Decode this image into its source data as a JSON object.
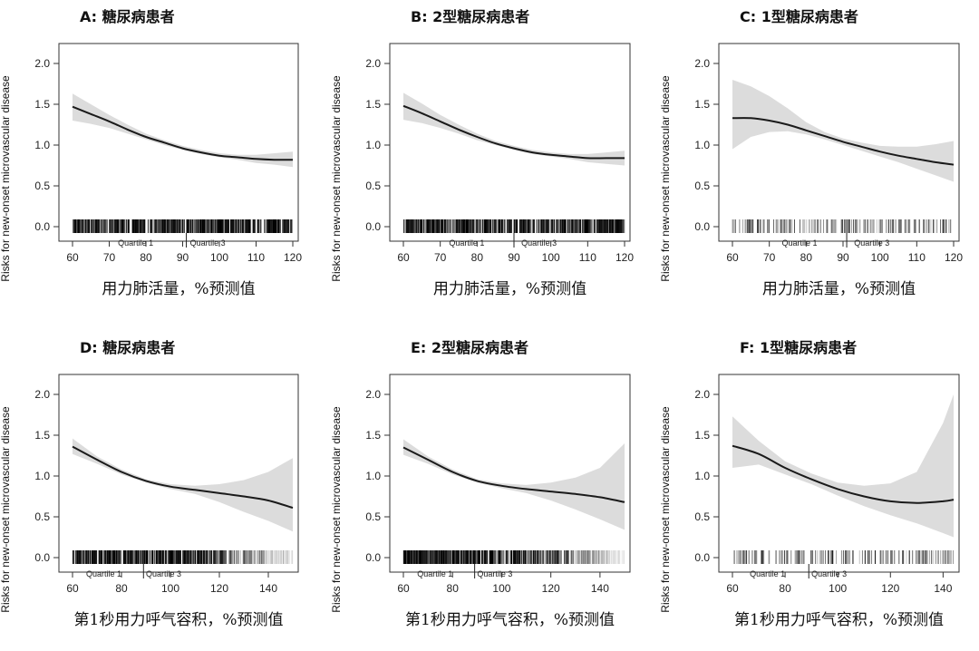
{
  "chart_data": [
    {
      "type": "line",
      "title": "A: 糖尿病患者",
      "xlabel": "用力肺活量，%预测值",
      "ylabel": "Risks for new-onset microvascular disease",
      "xlim": [
        60,
        120
      ],
      "ylim": [
        0,
        2
      ],
      "xticks": [
        60,
        70,
        80,
        90,
        100,
        110,
        120
      ],
      "yticks": [
        0.0,
        0.5,
        1.0,
        1.5,
        2.0
      ],
      "ytick_labels": [
        "0.0",
        "0.5",
        "1.0",
        "1.5",
        "2.0"
      ],
      "series": [
        {
          "x": [
            60,
            65,
            70,
            75,
            80,
            85,
            90,
            95,
            100,
            105,
            110,
            115,
            120
          ],
          "y": [
            1.47,
            1.38,
            1.29,
            1.19,
            1.1,
            1.03,
            0.96,
            0.91,
            0.87,
            0.85,
            0.83,
            0.82,
            0.82
          ]
        }
      ],
      "ci_lower": [
        1.3,
        1.26,
        1.21,
        1.14,
        1.07,
        1.0,
        0.94,
        0.89,
        0.85,
        0.82,
        0.78,
        0.76,
        0.73
      ],
      "ci_upper": [
        1.63,
        1.5,
        1.37,
        1.25,
        1.14,
        1.06,
        0.99,
        0.94,
        0.9,
        0.88,
        0.88,
        0.9,
        0.92
      ],
      "rug": {
        "min": 60,
        "max": 120,
        "density": "dense"
      },
      "quartiles": [
        {
          "label": "Quartile 1",
          "x": 82
        },
        {
          "label": "Quartile 3",
          "x": 92
        }
      ],
      "quartile_median_x": 91
    },
    {
      "type": "line",
      "title": "B: 2型糖尿病患者",
      "xlabel": "用力肺活量，%预测值",
      "ylabel": "Risks for new-onset microvascular disease",
      "xlim": [
        60,
        120
      ],
      "ylim": [
        0,
        2
      ],
      "xticks": [
        60,
        70,
        80,
        90,
        100,
        110,
        120
      ],
      "yticks": [
        0.0,
        0.5,
        1.0,
        1.5,
        2.0
      ],
      "ytick_labels": [
        "0.0",
        "0.5",
        "1.0",
        "1.5",
        "2.0"
      ],
      "series": [
        {
          "x": [
            60,
            65,
            70,
            75,
            80,
            85,
            90,
            95,
            100,
            105,
            110,
            115,
            120
          ],
          "y": [
            1.48,
            1.39,
            1.29,
            1.19,
            1.1,
            1.02,
            0.96,
            0.91,
            0.88,
            0.86,
            0.84,
            0.84,
            0.84
          ]
        }
      ],
      "ci_lower": [
        1.31,
        1.27,
        1.21,
        1.14,
        1.06,
        1.0,
        0.94,
        0.89,
        0.86,
        0.83,
        0.79,
        0.77,
        0.75
      ],
      "ci_upper": [
        1.64,
        1.51,
        1.37,
        1.25,
        1.14,
        1.05,
        0.99,
        0.94,
        0.91,
        0.89,
        0.89,
        0.91,
        0.93
      ],
      "rug": {
        "min": 60,
        "max": 120,
        "density": "dense"
      },
      "quartiles": [
        {
          "label": "Quartile 1",
          "x": 82
        },
        {
          "label": "Quartile 3",
          "x": 92
        }
      ],
      "quartile_median_x": 90
    },
    {
      "type": "line",
      "title": "C: 1型糖尿病患者",
      "xlabel": "用力肺活量，%预测值",
      "ylabel": "Risks for new-onset microvascular disease",
      "xlim": [
        60,
        120
      ],
      "ylim": [
        0,
        2
      ],
      "xticks": [
        60,
        70,
        80,
        90,
        100,
        110,
        120
      ],
      "yticks": [
        0.0,
        0.5,
        1.0,
        1.5,
        2.0
      ],
      "ytick_labels": [
        "0.0",
        "0.5",
        "1.0",
        "1.5",
        "2.0"
      ],
      "series": [
        {
          "x": [
            60,
            65,
            70,
            75,
            80,
            85,
            90,
            95,
            100,
            105,
            110,
            115,
            120
          ],
          "y": [
            1.33,
            1.33,
            1.3,
            1.25,
            1.18,
            1.11,
            1.04,
            0.98,
            0.92,
            0.87,
            0.83,
            0.79,
            0.76
          ]
        }
      ],
      "ci_lower": [
        0.95,
        1.1,
        1.16,
        1.17,
        1.13,
        1.07,
        1.0,
        0.93,
        0.86,
        0.79,
        0.71,
        0.63,
        0.55
      ],
      "ci_upper": [
        1.8,
        1.72,
        1.6,
        1.45,
        1.28,
        1.16,
        1.08,
        1.03,
        0.99,
        0.98,
        0.98,
        1.01,
        1.05
      ],
      "rug": {
        "min": 60,
        "max": 120,
        "density": "sparse"
      },
      "quartiles": [
        {
          "label": "Quartile 1",
          "x": 83
        },
        {
          "label": "Quartile 3",
          "x": 93
        }
      ],
      "quartile_median_x": 91
    },
    {
      "type": "line",
      "title": "D: 糖尿病患者",
      "xlabel": "第1秒用力呼气容积，%预测值",
      "ylabel": "Risks for new-onset microvascular disease",
      "xlim": [
        60,
        150
      ],
      "ylim": [
        0,
        2
      ],
      "xticks": [
        60,
        80,
        100,
        120,
        140
      ],
      "yticks": [
        0.0,
        0.5,
        1.0,
        1.5,
        2.0
      ],
      "ytick_labels": [
        "0.0",
        "0.5",
        "1.0",
        "1.5",
        "2.0"
      ],
      "series": [
        {
          "x": [
            60,
            70,
            80,
            90,
            100,
            110,
            120,
            130,
            140,
            150
          ],
          "y": [
            1.36,
            1.2,
            1.05,
            0.94,
            0.87,
            0.83,
            0.79,
            0.75,
            0.7,
            0.61
          ]
        }
      ],
      "ci_lower": [
        1.27,
        1.15,
        1.02,
        0.92,
        0.84,
        0.78,
        0.68,
        0.56,
        0.45,
        0.32
      ],
      "ci_upper": [
        1.46,
        1.24,
        1.08,
        0.96,
        0.9,
        0.88,
        0.9,
        0.95,
        1.05,
        1.22
      ],
      "rug": {
        "min": 60,
        "max": 150,
        "density": "dense-fade"
      },
      "quartiles": [
        {
          "label": "Quartile 1",
          "x": 80
        },
        {
          "label": "Quartile 3",
          "x": 90
        }
      ],
      "quartile_median_x": 89
    },
    {
      "type": "line",
      "title": "E: 2型糖尿病患者",
      "xlabel": "第1秒用力呼气容积，%预测值",
      "ylabel": "Risks for new-onset microvascular disease",
      "xlim": [
        60,
        150
      ],
      "ylim": [
        0,
        2
      ],
      "xticks": [
        60,
        80,
        100,
        120,
        140
      ],
      "yticks": [
        0.0,
        0.5,
        1.0,
        1.5,
        2.0
      ],
      "ytick_labels": [
        "0.0",
        "0.5",
        "1.0",
        "1.5",
        "2.0"
      ],
      "series": [
        {
          "x": [
            60,
            70,
            80,
            90,
            100,
            110,
            120,
            130,
            140,
            150
          ],
          "y": [
            1.35,
            1.2,
            1.05,
            0.94,
            0.88,
            0.84,
            0.81,
            0.78,
            0.74,
            0.68
          ]
        }
      ],
      "ci_lower": [
        1.26,
        1.15,
        1.02,
        0.92,
        0.85,
        0.79,
        0.7,
        0.59,
        0.47,
        0.34
      ],
      "ci_upper": [
        1.45,
        1.24,
        1.08,
        0.96,
        0.91,
        0.89,
        0.92,
        0.98,
        1.1,
        1.4
      ],
      "rug": {
        "min": 60,
        "max": 150,
        "density": "dense-fade"
      },
      "quartiles": [
        {
          "label": "Quartile 1",
          "x": 80
        },
        {
          "label": "Quartile 3",
          "x": 90
        }
      ],
      "quartile_median_x": 89
    },
    {
      "type": "line",
      "title": "F: 1型糖尿病患者",
      "xlabel": "第1秒用力呼气容积，%预测值",
      "ylabel": "Risks for new-onset microvascular disease",
      "xlim": [
        60,
        144
      ],
      "ylim": [
        0,
        2
      ],
      "xticks": [
        60,
        80,
        100,
        120,
        140
      ],
      "yticks": [
        0.0,
        0.5,
        1.0,
        1.5,
        2.0
      ],
      "ytick_labels": [
        "0.0",
        "0.5",
        "1.0",
        "1.5",
        "2.0"
      ],
      "series": [
        {
          "x": [
            60,
            70,
            80,
            90,
            100,
            110,
            120,
            130,
            140,
            144
          ],
          "y": [
            1.37,
            1.27,
            1.1,
            0.96,
            0.84,
            0.75,
            0.69,
            0.67,
            0.69,
            0.71
          ]
        }
      ],
      "ci_lower": [
        1.1,
        1.14,
        1.02,
        0.9,
        0.76,
        0.63,
        0.52,
        0.42,
        0.3,
        0.25
      ],
      "ci_upper": [
        1.73,
        1.43,
        1.18,
        1.03,
        0.92,
        0.88,
        0.91,
        1.05,
        1.65,
        2.0
      ],
      "rug": {
        "min": 60,
        "max": 144,
        "density": "sparse"
      },
      "quartiles": [
        {
          "label": "Quartile 1",
          "x": 80
        },
        {
          "label": "Quartile 3",
          "x": 90
        }
      ],
      "quartile_median_x": 89
    }
  ]
}
